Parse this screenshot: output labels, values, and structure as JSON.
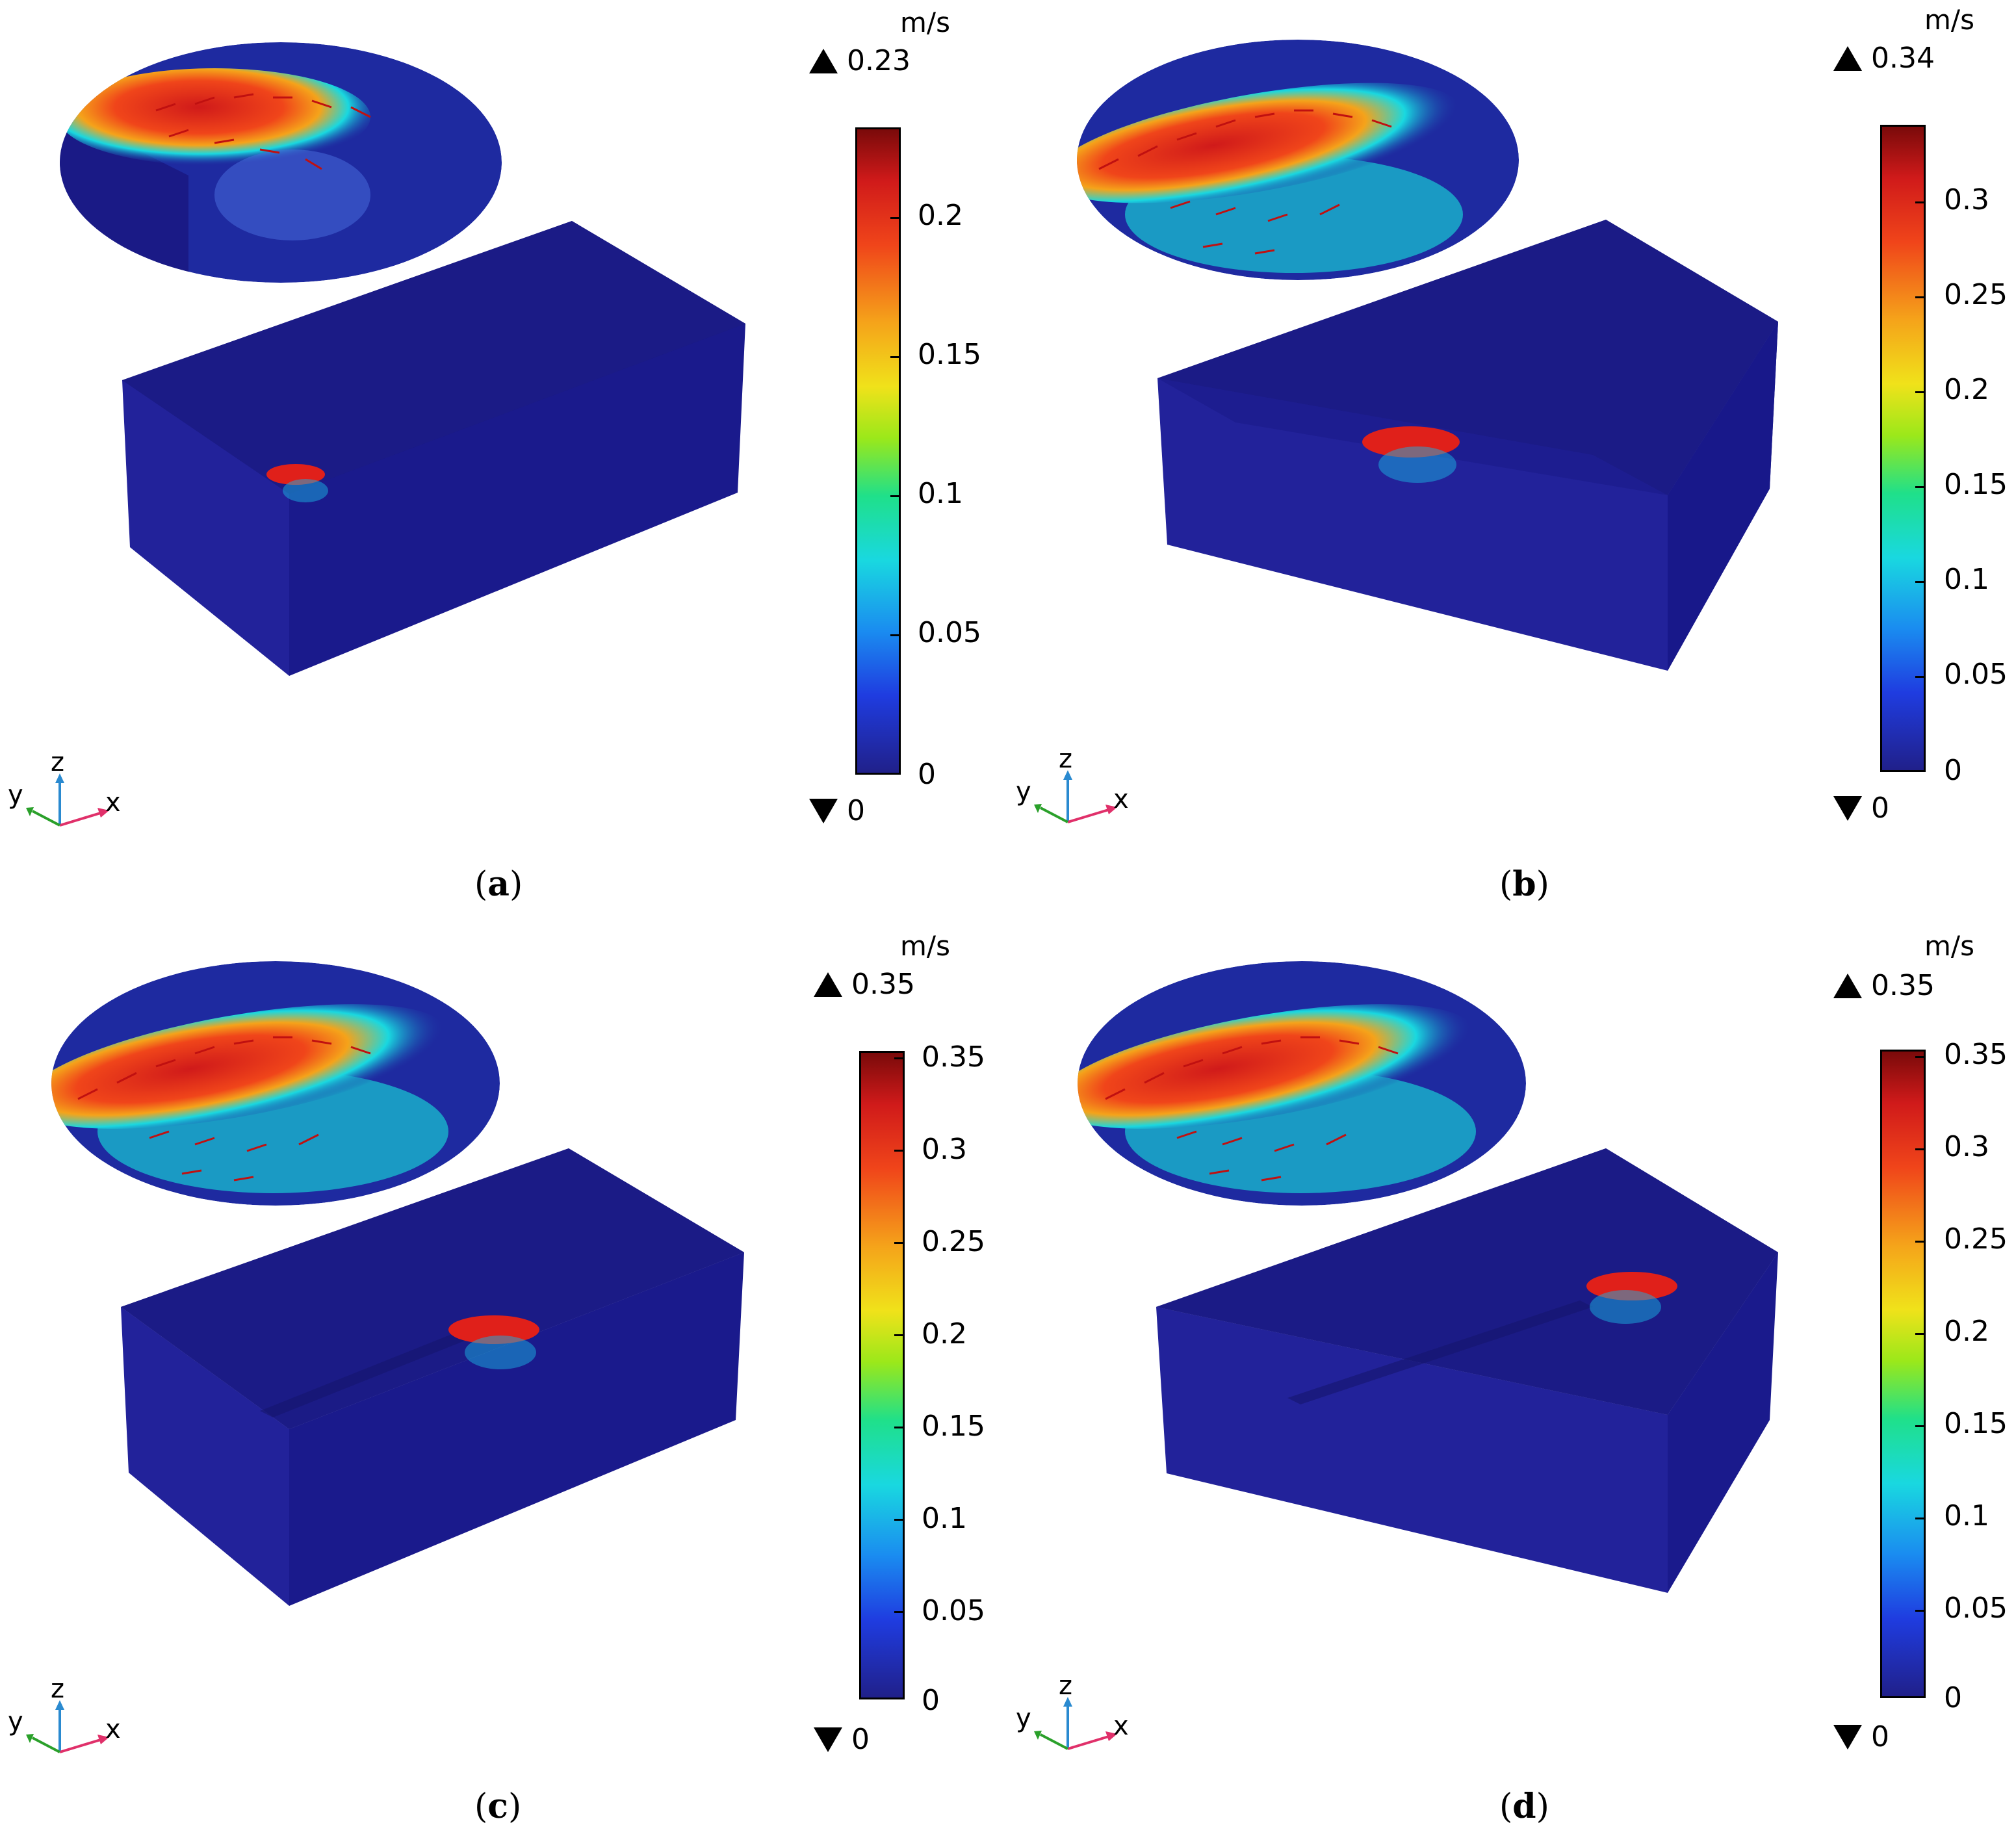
{
  "panels": [
    {
      "id": "a",
      "caption_letter": "a",
      "unit": "m/s",
      "max_label": "0.23",
      "min_label": "0",
      "ticks": [
        "0.2",
        "0.15",
        "0.1",
        "0.05",
        "0"
      ],
      "axes": {
        "x": "x",
        "y": "y",
        "z": "z"
      }
    },
    {
      "id": "b",
      "caption_letter": "b",
      "unit": "m/s",
      "max_label": "0.34",
      "min_label": "0",
      "ticks": [
        "0.3",
        "0.25",
        "0.2",
        "0.15",
        "0.1",
        "0.05",
        "0"
      ],
      "axes": {
        "x": "x",
        "y": "y",
        "z": "z"
      }
    },
    {
      "id": "c",
      "caption_letter": "c",
      "unit": "m/s",
      "max_label": "0.35",
      "min_label": "0",
      "ticks": [
        "0.35",
        "0.3",
        "0.25",
        "0.2",
        "0.15",
        "0.1",
        "0.05",
        "0"
      ],
      "axes": {
        "x": "x",
        "y": "y",
        "z": "z"
      }
    },
    {
      "id": "d",
      "caption_letter": "d",
      "unit": "m/s",
      "max_label": "0.35",
      "min_label": "0",
      "ticks": [
        "0.35",
        "0.3",
        "0.25",
        "0.2",
        "0.15",
        "0.1",
        "0.05",
        "0"
      ],
      "axes": {
        "x": "x",
        "y": "y",
        "z": "z"
      }
    }
  ],
  "colors": {
    "block_top": "#1b1b86",
    "block_front": "#1a1a8c",
    "block_side": "#22229a",
    "inset_bg": "#1e2aa0",
    "hot": "#e0201a",
    "warm": "#f5a31a",
    "cool": "#19d8e0",
    "arrow": "#c01010",
    "axis_x": "#e0306a",
    "axis_y": "#2aa02a",
    "axis_z": "#2a8ad0"
  }
}
